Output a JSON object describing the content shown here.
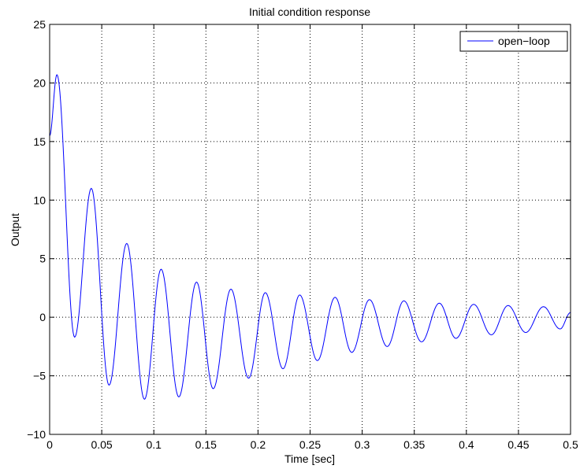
{
  "chart_data": {
    "type": "line",
    "title": "Initial condition response",
    "xlabel": "Time [sec]",
    "ylabel": "Output",
    "xlim": [
      0,
      0.5
    ],
    "ylim": [
      -10,
      25
    ],
    "grid": true,
    "grid_style": "dotted",
    "legend_position": "top-right",
    "x_ticks": [
      {
        "value": 0,
        "label": "0"
      },
      {
        "value": 0.05,
        "label": "0.05"
      },
      {
        "value": 0.1,
        "label": "0.1"
      },
      {
        "value": 0.15,
        "label": "0.15"
      },
      {
        "value": 0.2,
        "label": "0.2"
      },
      {
        "value": 0.25,
        "label": "0.25"
      },
      {
        "value": 0.3,
        "label": "0.3"
      },
      {
        "value": 0.35,
        "label": "0.35"
      },
      {
        "value": 0.4,
        "label": "0.4"
      },
      {
        "value": 0.45,
        "label": "0.45"
      },
      {
        "value": 0.5,
        "label": "0.5"
      }
    ],
    "y_ticks": [
      {
        "value": -10,
        "label": "−10"
      },
      {
        "value": -5,
        "label": "−5"
      },
      {
        "value": 0,
        "label": "0"
      },
      {
        "value": 5,
        "label": "5"
      },
      {
        "value": 10,
        "label": "10"
      },
      {
        "value": 15,
        "label": "15"
      },
      {
        "value": 20,
        "label": "20"
      },
      {
        "value": 25,
        "label": "25"
      }
    ],
    "series": [
      {
        "name": "open−loop",
        "color": "#0000ff",
        "points": [
          [
            0.0,
            15.5
          ],
          [
            0.007,
            20.7
          ],
          [
            0.024,
            -1.7
          ],
          [
            0.04,
            11.0
          ],
          [
            0.057,
            -5.8
          ],
          [
            0.074,
            6.3
          ],
          [
            0.091,
            -7.0
          ],
          [
            0.107,
            4.1
          ],
          [
            0.124,
            -6.8
          ],
          [
            0.141,
            3.0
          ],
          [
            0.157,
            -6.1
          ],
          [
            0.174,
            2.4
          ],
          [
            0.191,
            -5.2
          ],
          [
            0.207,
            2.1
          ],
          [
            0.224,
            -4.4
          ],
          [
            0.24,
            1.9
          ],
          [
            0.257,
            -3.7
          ],
          [
            0.274,
            1.7
          ],
          [
            0.29,
            -3.0
          ],
          [
            0.307,
            1.5
          ],
          [
            0.324,
            -2.5
          ],
          [
            0.34,
            1.4
          ],
          [
            0.357,
            -2.1
          ],
          [
            0.374,
            1.2
          ],
          [
            0.39,
            -1.8
          ],
          [
            0.407,
            1.1
          ],
          [
            0.424,
            -1.5
          ],
          [
            0.44,
            1.0
          ],
          [
            0.457,
            -1.3
          ],
          [
            0.474,
            0.9
          ],
          [
            0.49,
            -1.0
          ],
          [
            0.5,
            0.4
          ]
        ]
      }
    ]
  }
}
